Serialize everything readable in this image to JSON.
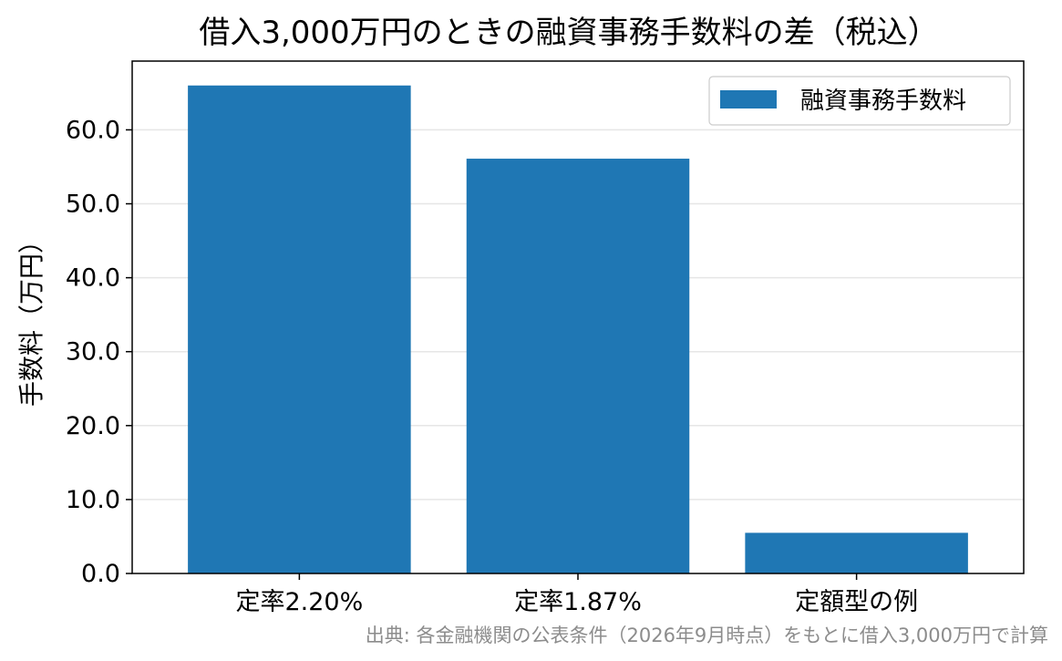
{
  "chart_data": {
    "type": "bar",
    "title": "借入3,000万円のときの融資事務手数料の差（税込）",
    "xlabel": "",
    "ylabel": "手数料（万円）",
    "categories": [
      "定率2.20%",
      "定率1.87%",
      "定額型の例"
    ],
    "series": [
      {
        "name": "融資事務手数料",
        "values": [
          66.0,
          56.1,
          5.5
        ],
        "color": "#1f77b4"
      }
    ],
    "ylim": [
      0,
      69.3
    ],
    "yticks": [
      0,
      10,
      20,
      30,
      40,
      50,
      60
    ],
    "ytick_labels": [
      "0.0",
      "10.0",
      "20.0",
      "30.0",
      "40.0",
      "50.0",
      "60.0"
    ],
    "grid": "y",
    "legend": "top-right",
    "source_note": "出典: 各金融機関の公表条件（2026年9月時点）をもとに借入3,000万円で計算"
  }
}
